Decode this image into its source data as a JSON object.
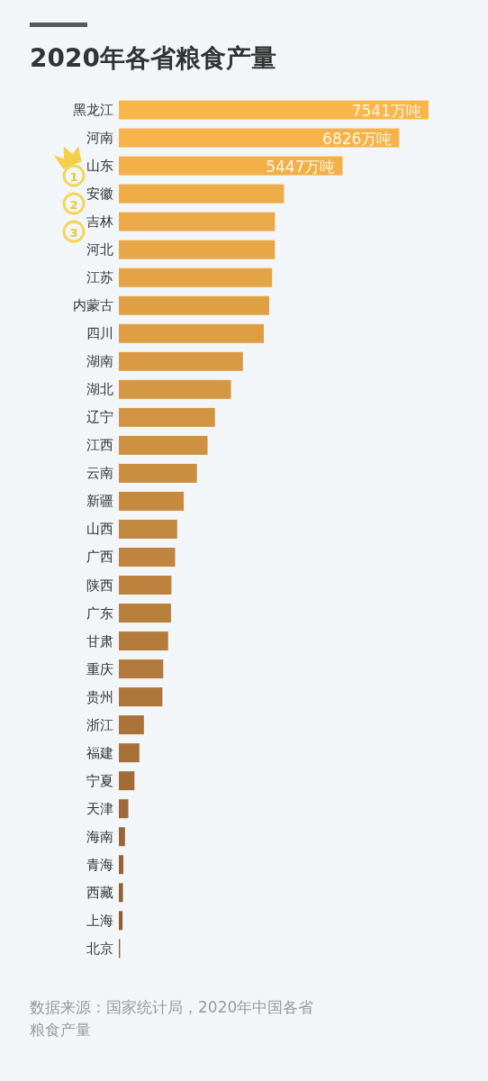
{
  "chart_data": {
    "type": "bar",
    "orientation": "horizontal",
    "title": "2020年各省粮食产量",
    "categories": [
      "黑龙江",
      "河南",
      "山东",
      "安徽",
      "吉林",
      "河北",
      "江苏",
      "内蒙古",
      "四川",
      "湖南",
      "湖北",
      "辽宁",
      "江西",
      "云南",
      "新疆",
      "山西",
      "广西",
      "陕西",
      "广东",
      "甘肃",
      "重庆",
      "贵州",
      "浙江",
      "福建",
      "宁夏",
      "天津",
      "海南",
      "青海",
      "西藏",
      "上海",
      "北京"
    ],
    "values": [
      7541,
      6826,
      5447,
      4020,
      3800,
      3800,
      3730,
      3660,
      3530,
      3020,
      2730,
      2340,
      2160,
      1900,
      1580,
      1420,
      1370,
      1280,
      1270,
      1200,
      1080,
      1060,
      610,
      500,
      380,
      230,
      150,
      110,
      100,
      90,
      30
    ],
    "value_labels": [
      "7541万吨",
      "6826万吨",
      "5447万吨",
      null,
      null,
      null,
      null,
      null,
      null,
      null,
      null,
      null,
      null,
      null,
      null,
      null,
      null,
      null,
      null,
      null,
      null,
      null,
      null,
      null,
      null,
      null,
      null,
      null,
      null,
      null,
      null
    ],
    "colors": [
      "#fab64a",
      "#f6b349",
      "#f3b049",
      "#efad48",
      "#ebaa47",
      "#e8a746",
      "#e4a446",
      "#e0a145",
      "#dd9d44",
      "#d99a43",
      "#d59743",
      "#d29442",
      "#ce9141",
      "#ca8e40",
      "#c78b40",
      "#c3883f",
      "#bf853e",
      "#bc823e",
      "#b87f3d",
      "#b47c3c",
      "#b1793b",
      "#ad763b",
      "#a9733a",
      "#a67039",
      "#a26c38",
      "#9e6938",
      "#9b6637",
      "#976336",
      "#936035",
      "#905d35",
      "#8c5a34"
    ],
    "annotations": [
      "1",
      "2",
      "3",
      "数据来源：国家统计局，2020年中国各省粮食产量"
    ]
  }
}
